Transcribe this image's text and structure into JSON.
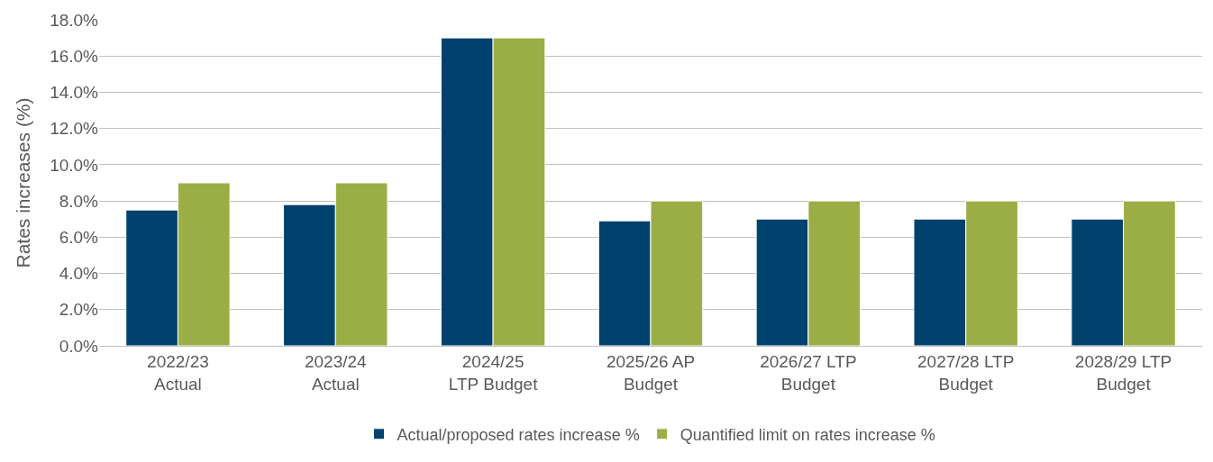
{
  "chart_data": {
    "type": "bar",
    "ylabel": "Rates increases (%)",
    "categories": [
      "2022/23\nActual",
      "2023/24\nActual",
      "2024/25\nLTP Budget",
      "2025/26 AP\nBudget",
      "2026/27 LTP\nBudget",
      "2027/28 LTP\nBudget",
      "2028/29 LTP\nBudget"
    ],
    "series": [
      {
        "name": "Actual/proposed rates increase %",
        "color": "#00416e",
        "values": [
          7.5,
          7.8,
          17.0,
          6.9,
          7.0,
          7.0,
          7.0
        ]
      },
      {
        "name": "Quantified limit on rates increase %",
        "color": "#9aae45",
        "values": [
          9.0,
          9.0,
          17.0,
          8.0,
          8.0,
          8.0,
          8.0
        ]
      }
    ],
    "ylim": [
      0,
      18
    ],
    "yticks": [
      {
        "value": 0,
        "label": "0.0%"
      },
      {
        "value": 2,
        "label": "2.0%"
      },
      {
        "value": 4,
        "label": "4.0%"
      },
      {
        "value": 6,
        "label": "6.0%"
      },
      {
        "value": 8,
        "label": "8.0%"
      },
      {
        "value": 10,
        "label": "10.0%"
      },
      {
        "value": 12,
        "label": "12.0%"
      },
      {
        "value": 14,
        "label": "14.0%"
      },
      {
        "value": 16,
        "label": "16.0%"
      },
      {
        "value": 18,
        "label": "18.0%"
      }
    ],
    "grid": "y",
    "legend": "bottom"
  }
}
